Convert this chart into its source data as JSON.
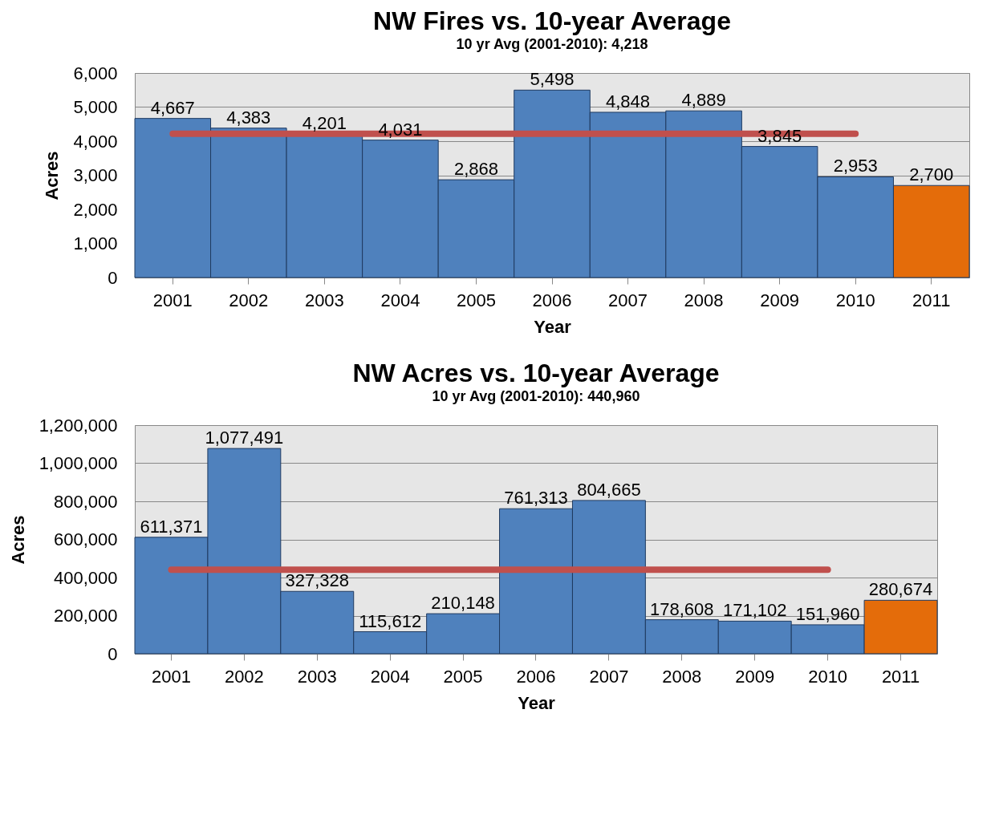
{
  "chart_data": [
    {
      "type": "bar",
      "title": "NW Fires vs. 10-year Average",
      "subtitle": "10 yr Avg (2001-2010): 4,218",
      "xlabel": "Year",
      "ylabel": "Acres",
      "categories": [
        "2001",
        "2002",
        "2003",
        "2004",
        "2005",
        "2006",
        "2007",
        "2008",
        "2009",
        "2010",
        "2011"
      ],
      "series": [
        {
          "type": "bar",
          "colors": [
            "#4f81bd",
            "#4f81bd",
            "#4f81bd",
            "#4f81bd",
            "#4f81bd",
            "#4f81bd",
            "#4f81bd",
            "#4f81bd",
            "#4f81bd",
            "#4f81bd",
            "#e46c0a"
          ],
          "values": [
            4667,
            4383,
            4201,
            4031,
            2868,
            5498,
            4848,
            4889,
            3845,
            2953,
            2700
          ],
          "value_labels": [
            "4,667",
            "4,383",
            "4,201",
            "4,031",
            "2,868",
            "5,498",
            "4,848",
            "4,889",
            "3,845",
            "2,953",
            "2,700"
          ]
        },
        {
          "type": "line",
          "color": "#c0504d",
          "values": [
            4218,
            4218,
            4218,
            4218,
            4218,
            4218,
            4218,
            4218,
            4218,
            4218,
            null
          ]
        }
      ],
      "ylim": [
        0,
        6000
      ],
      "yticks": [
        0,
        {
          "value": 1000,
          "label": "1,000"
        },
        {
          "value": 2000,
          "label": "2,000"
        },
        {
          "value": 3000,
          "label": "3,000"
        },
        {
          "value": 4000,
          "label": "4,000"
        },
        {
          "value": 5000,
          "label": "5,000"
        },
        {
          "value": 6000,
          "label": "6,000"
        }
      ],
      "grid": "y"
    },
    {
      "type": "bar",
      "title": "NW Acres vs. 10-year Average",
      "subtitle": "10 yr Avg (2001-2010): 440,960",
      "xlabel": "Year",
      "ylabel": "Acres",
      "categories": [
        "2001",
        "2002",
        "2003",
        "2004",
        "2005",
        "2006",
        "2007",
        "2008",
        "2009",
        "2010",
        "2011"
      ],
      "series": [
        {
          "type": "bar",
          "colors": [
            "#4f81bd",
            "#4f81bd",
            "#4f81bd",
            "#4f81bd",
            "#4f81bd",
            "#4f81bd",
            "#4f81bd",
            "#4f81bd",
            "#4f81bd",
            "#4f81bd",
            "#e46c0a"
          ],
          "values": [
            611371,
            1077491,
            327328,
            115612,
            210148,
            761313,
            804665,
            178608,
            171102,
            151960,
            280674
          ],
          "value_labels": [
            "611,371",
            "1,077,491",
            "327,328",
            "115,612",
            "210,148",
            "761,313",
            "804,665",
            "178,608",
            "171,102",
            "151,960",
            "280,674"
          ]
        },
        {
          "type": "line",
          "color": "#c0504d",
          "values": [
            440960,
            440960,
            440960,
            440960,
            440960,
            440960,
            440960,
            440960,
            440960,
            440960,
            null
          ]
        }
      ],
      "ylim": [
        0,
        1200000
      ],
      "yticks": [
        0,
        {
          "value": 200000,
          "label": "200,000"
        },
        {
          "value": 400000,
          "label": "400,000"
        },
        {
          "value": 600000,
          "label": "600,000"
        },
        {
          "value": 800000,
          "label": "800,000"
        },
        {
          "value": 1000000,
          "label": "1,000,000"
        },
        {
          "value": 1200000,
          "label": "1,200,000"
        }
      ],
      "grid": "y"
    }
  ]
}
